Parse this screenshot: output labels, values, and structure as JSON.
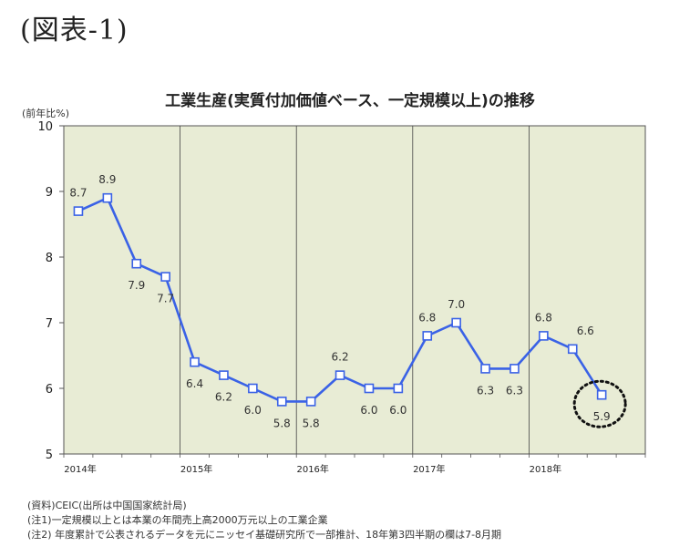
{
  "figure_label": "(図表-1)",
  "chart_data": {
    "type": "line",
    "title": "工業生産(実質付加価値ベース、一定規模以上)の推移",
    "unit_label": "(前年比%)",
    "ylim": [
      5,
      10
    ],
    "yticks": [
      5,
      6,
      7,
      8,
      9,
      10
    ],
    "grid": "vertical lines at year boundaries",
    "plot_background": "#e8ecd5",
    "line_color": "#3a62e6",
    "year_labels": [
      "2014年",
      "2015年",
      "2016年",
      "2017年",
      "2018年"
    ],
    "points": [
      {
        "quarter": "2014 Q1",
        "value": 8.7,
        "label": "8.7"
      },
      {
        "quarter": "2014 Q2",
        "value": 8.9,
        "label": "8.9"
      },
      {
        "quarter": "2014 Q3",
        "value": 7.9,
        "label": "7.9"
      },
      {
        "quarter": "2014 Q4",
        "value": 7.7,
        "label": "7.7"
      },
      {
        "quarter": "2015 Q1",
        "value": 6.4,
        "label": "6.4"
      },
      {
        "quarter": "2015 Q2",
        "value": 6.2,
        "label": "6.2"
      },
      {
        "quarter": "2015 Q3",
        "value": 6.0,
        "label": "6.0"
      },
      {
        "quarter": "2015 Q4",
        "value": 5.8,
        "label": "5.8"
      },
      {
        "quarter": "2016 Q1",
        "value": 5.8,
        "label": "5.8"
      },
      {
        "quarter": "2016 Q2",
        "value": 6.2,
        "label": "6.2"
      },
      {
        "quarter": "2016 Q3",
        "value": 6.0,
        "label": "6.0"
      },
      {
        "quarter": "2016 Q4",
        "value": 6.0,
        "label": "6.0"
      },
      {
        "quarter": "2017 Q1",
        "value": 6.8,
        "label": "6.8"
      },
      {
        "quarter": "2017 Q2",
        "value": 7.0,
        "label": "7.0"
      },
      {
        "quarter": "2017 Q3",
        "value": 6.3,
        "label": "6.3"
      },
      {
        "quarter": "2017 Q4",
        "value": 6.3,
        "label": "6.3"
      },
      {
        "quarter": "2018 Q1",
        "value": 6.8,
        "label": "6.8"
      },
      {
        "quarter": "2018 Q2",
        "value": 6.6,
        "label": "6.6"
      },
      {
        "quarter": "2018 Q3",
        "value": 5.9,
        "label": "5.9"
      }
    ],
    "highlight": {
      "quarter": "2018 Q3",
      "style": "dotted circle"
    }
  },
  "notes": [
    "(資料)CEIC(出所は中国国家統計局)",
    "(注1)一定規模以上とは本業の年間売上高2000万元以上の工業企業",
    "(注2) 年度累計で公表されるデータを元にニッセイ基礎研究所で一部推計、18年第3四半期の欄は7-8月期"
  ]
}
